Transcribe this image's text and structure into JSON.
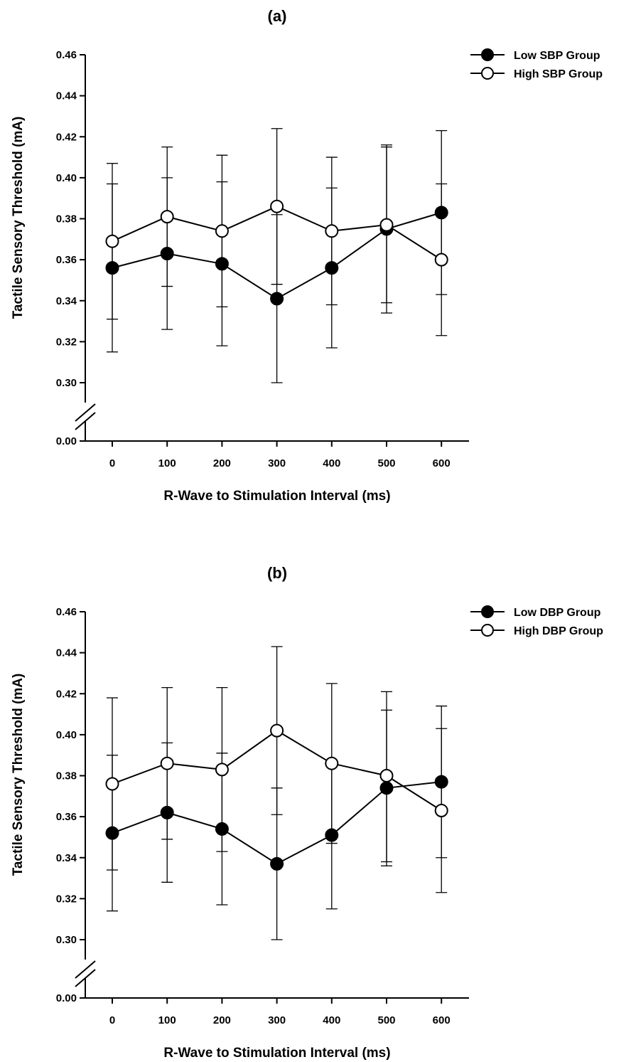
{
  "chart_data": [
    {
      "type": "line",
      "title": "(a)",
      "xlabel": "R-Wave to Stimulation Interval (ms)",
      "ylabel": "Tactile Sensory Threshold (mA)",
      "x": [
        0,
        100,
        200,
        300,
        400,
        500,
        600
      ],
      "x_tick_labels": [
        "0",
        "100",
        "200",
        "300",
        "400",
        "500",
        "600"
      ],
      "y_tick_labels": [
        "0.00",
        "0.30",
        "0.32",
        "0.34",
        "0.36",
        "0.38",
        "0.40",
        "0.42",
        "0.44",
        "0.46"
      ],
      "ylim": [
        0.3,
        0.46
      ],
      "y_axis_break": "between 0.00 and 0.30",
      "legend_position": "top-right",
      "grid": false,
      "series": [
        {
          "name": "Low SBP Group",
          "marker": "filled-circle",
          "values": [
            0.356,
            0.363,
            0.358,
            0.341,
            0.356,
            0.375,
            0.383
          ],
          "error_lower": [
            0.315,
            0.326,
            0.318,
            0.3,
            0.317,
            0.334,
            0.343
          ],
          "error_upper": [
            0.397,
            0.4,
            0.398,
            0.382,
            0.395,
            0.416,
            0.423
          ]
        },
        {
          "name": "High SBP Group",
          "marker": "open-circle",
          "values": [
            0.369,
            0.381,
            0.374,
            0.386,
            0.374,
            0.377,
            0.36
          ],
          "error_lower": [
            0.331,
            0.347,
            0.337,
            0.348,
            0.338,
            0.339,
            0.323
          ],
          "error_upper": [
            0.407,
            0.415,
            0.411,
            0.424,
            0.41,
            0.415,
            0.397
          ]
        }
      ]
    },
    {
      "type": "line",
      "title": "(b)",
      "xlabel": "R-Wave to Stimulation Interval (ms)",
      "ylabel": "Tactile Sensory Threshold (mA)",
      "x": [
        0,
        100,
        200,
        300,
        400,
        500,
        600
      ],
      "x_tick_labels": [
        "0",
        "100",
        "200",
        "300",
        "400",
        "500",
        "600"
      ],
      "y_tick_labels": [
        "0.00",
        "0.30",
        "0.32",
        "0.34",
        "0.36",
        "0.38",
        "0.40",
        "0.42",
        "0.44",
        "0.46"
      ],
      "ylim": [
        0.3,
        0.46
      ],
      "y_axis_break": "between 0.00 and 0.30",
      "legend_position": "top-right",
      "grid": false,
      "series": [
        {
          "name": "Low DBP Group",
          "marker": "filled-circle",
          "values": [
            0.352,
            0.362,
            0.354,
            0.337,
            0.351,
            0.374,
            0.377
          ],
          "error_lower": [
            0.314,
            0.328,
            0.317,
            0.3,
            0.315,
            0.336,
            0.34
          ],
          "error_upper": [
            0.39,
            0.396,
            0.391,
            0.374,
            0.387,
            0.412,
            0.414
          ]
        },
        {
          "name": "High DBP Group",
          "marker": "open-circle",
          "values": [
            0.376,
            0.386,
            0.383,
            0.402,
            0.386,
            0.38,
            0.363
          ],
          "error_lower": [
            0.334,
            0.349,
            0.343,
            0.361,
            0.347,
            0.338,
            0.323
          ],
          "error_upper": [
            0.418,
            0.423,
            0.423,
            0.443,
            0.425,
            0.421,
            0.403
          ]
        }
      ]
    }
  ]
}
